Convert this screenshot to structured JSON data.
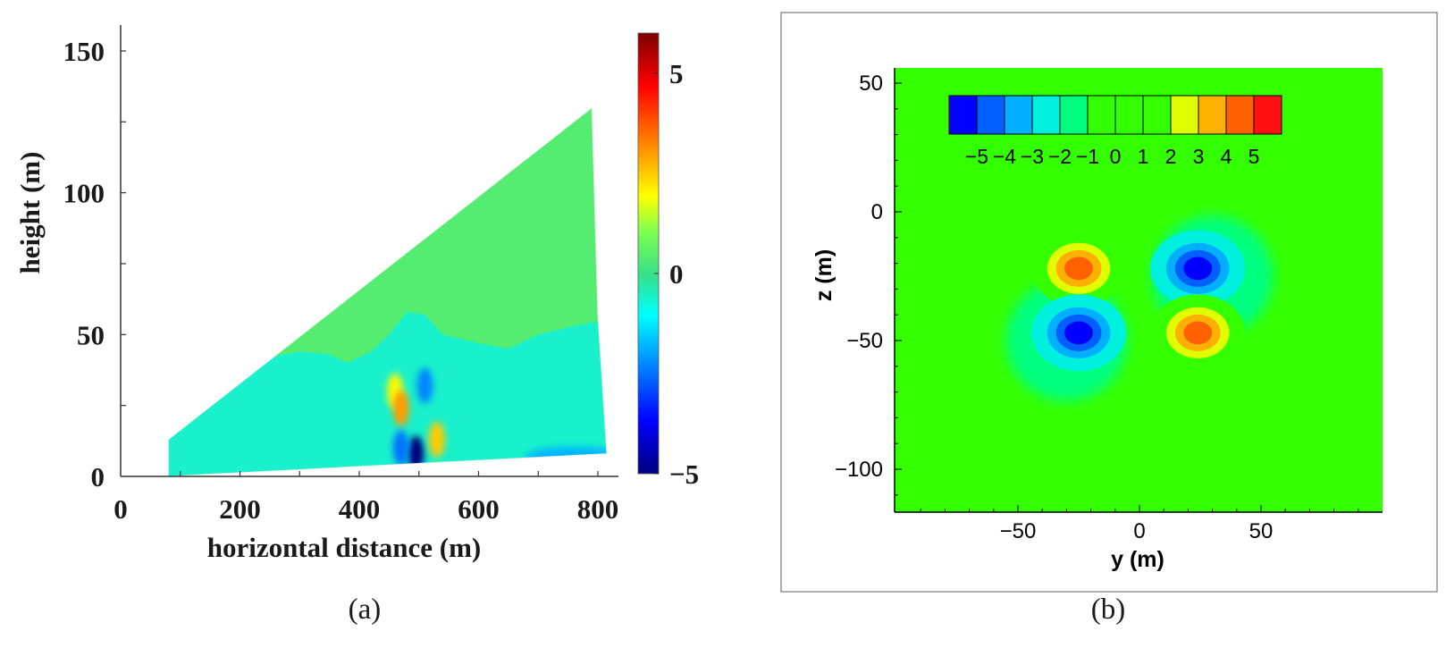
{
  "chart_data": [
    {
      "panel": "a",
      "type": "heatmap",
      "panel_label": "(a)",
      "xlabel": "horizontal distance (m)",
      "ylabel": "height (m)",
      "xlim": [
        0,
        840
      ],
      "ylim": [
        0,
        160
      ],
      "xticks": [
        0,
        200,
        400,
        600,
        800
      ],
      "yticks": [
        0,
        50,
        100,
        150
      ],
      "colorbar": {
        "min": -5,
        "max": 6,
        "ticks": [
          5,
          0,
          -5
        ],
        "tick_labels": [
          "5",
          "0",
          "−5"
        ]
      },
      "domain_outline": [
        [
          80,
          0
        ],
        [
          80,
          13
        ],
        [
          790,
          130
        ],
        [
          800,
          57
        ],
        [
          815,
          8
        ],
        [
          80,
          0
        ]
      ],
      "regions": [
        {
          "name": "lower-field",
          "value": -0.6
        },
        {
          "name": "upper-field",
          "value": 0.4
        },
        {
          "name": "near-ground-right",
          "value": -1.8
        }
      ],
      "features": [
        {
          "x": 460,
          "y": 30,
          "value": 2.0
        },
        {
          "x": 470,
          "y": 24,
          "value": 3.0
        },
        {
          "x": 510,
          "y": 32,
          "value": -2.3
        },
        {
          "x": 495,
          "y": 8,
          "value": -5.0
        },
        {
          "x": 470,
          "y": 10,
          "value": -2.5
        },
        {
          "x": 530,
          "y": 13,
          "value": 2.5
        }
      ]
    },
    {
      "panel": "b",
      "type": "heatmap",
      "panel_label": "(b)",
      "xlabel": "y (m)",
      "ylabel": "z (m)",
      "xlim": [
        -95,
        95
      ],
      "ylim": [
        -115,
        55
      ],
      "xticks": [
        -50,
        0,
        50
      ],
      "yticks": [
        50,
        0,
        -50,
        -100
      ],
      "background_value": 0,
      "legend_levels": [
        -5.5,
        -4.5,
        -3.5,
        -2.5,
        -1.5,
        -0.5,
        0.5,
        1.5,
        2.5,
        3.5,
        4.5,
        5.5
      ],
      "legend_labels": [
        "−5",
        "−4",
        "−3",
        "−2",
        "−1",
        "0",
        "1",
        "2",
        "3",
        "4",
        "5"
      ],
      "features": [
        {
          "name": "positive-upper-left",
          "y": -25,
          "z": -22,
          "value": 5.2,
          "radius": 13
        },
        {
          "name": "negative-upper-right",
          "y": 24,
          "z": -22,
          "value": -5.2,
          "radius": 13
        },
        {
          "name": "negative-lower-left",
          "y": -25,
          "z": -47,
          "value": -5.2,
          "radius": 13
        },
        {
          "name": "positive-lower-right",
          "y": 24,
          "z": -47,
          "value": 5.2,
          "radius": 13
        },
        {
          "name": "halo-upper-right",
          "y": 30,
          "z": -25,
          "value": -1.5,
          "radius": 25
        },
        {
          "name": "halo-lower-left",
          "y": -30,
          "z": -50,
          "value": -1.5,
          "radius": 25
        }
      ]
    }
  ]
}
